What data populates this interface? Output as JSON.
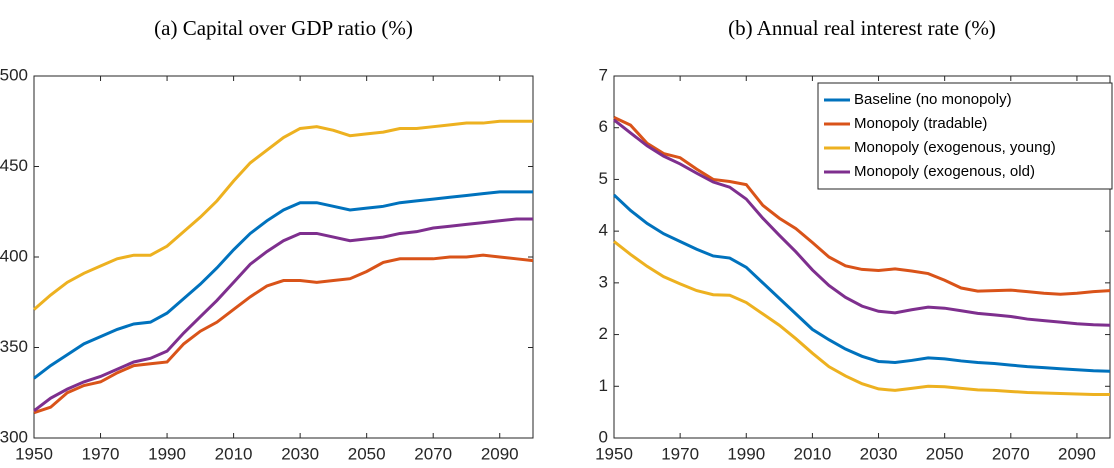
{
  "chart_data": [
    {
      "type": "line",
      "title": "(a) Capital over GDP ratio (%)",
      "x": [
        1950,
        1955,
        1960,
        1965,
        1970,
        1975,
        1980,
        1985,
        1990,
        1995,
        2000,
        2005,
        2010,
        2015,
        2020,
        2025,
        2030,
        2035,
        2040,
        2045,
        2050,
        2055,
        2060,
        2065,
        2070,
        2075,
        2080,
        2085,
        2090,
        2095,
        2100
      ],
      "xlim": [
        1950,
        2100
      ],
      "xticks": [
        1950,
        1970,
        1990,
        2010,
        2030,
        2050,
        2070,
        2090
      ],
      "ylim": [
        300,
        500
      ],
      "yticks": [
        300,
        350,
        400,
        450,
        500
      ],
      "series": [
        {
          "color": "#0072BD",
          "values": [
            333,
            340,
            346,
            352,
            356,
            360,
            363,
            364,
            369,
            377,
            385,
            394,
            404,
            413,
            420,
            426,
            430,
            430,
            428,
            426,
            427,
            428,
            430,
            431,
            432,
            433,
            434,
            435,
            436,
            436,
            436
          ]
        },
        {
          "color": "#D95319",
          "values": [
            314,
            317,
            325,
            329,
            331,
            336,
            340,
            341,
            342,
            352,
            359,
            364,
            371,
            378,
            384,
            387,
            387,
            386,
            387,
            388,
            392,
            397,
            399,
            399,
            399,
            400,
            400,
            401,
            400,
            399,
            398
          ]
        },
        {
          "color": "#EDB120",
          "values": [
            371,
            379,
            386,
            391,
            395,
            399,
            401,
            401,
            406,
            414,
            422,
            431,
            442,
            452,
            459,
            466,
            471,
            472,
            470,
            467,
            468,
            469,
            471,
            471,
            472,
            473,
            474,
            474,
            475,
            475,
            475
          ]
        },
        {
          "color": "#7E2F8E",
          "values": [
            315,
            322,
            327,
            331,
            334,
            338,
            342,
            344,
            348,
            358,
            367,
            376,
            386,
            396,
            403,
            409,
            413,
            413,
            411,
            409,
            410,
            411,
            413,
            414,
            416,
            417,
            418,
            419,
            420,
            421,
            421
          ]
        }
      ]
    },
    {
      "type": "line",
      "title": "(b) Annual real interest rate (%)",
      "x": [
        1950,
        1955,
        1960,
        1965,
        1970,
        1975,
        1980,
        1985,
        1990,
        1995,
        2000,
        2005,
        2010,
        2015,
        2020,
        2025,
        2030,
        2035,
        2040,
        2045,
        2050,
        2055,
        2060,
        2065,
        2070,
        2075,
        2080,
        2085,
        2090,
        2095,
        2100
      ],
      "xlim": [
        1950,
        2100
      ],
      "xticks": [
        1950,
        1970,
        1990,
        2010,
        2030,
        2050,
        2070,
        2090
      ],
      "ylim": [
        0,
        7
      ],
      "yticks": [
        0,
        1,
        2,
        3,
        4,
        5,
        6,
        7
      ],
      "legend": "northeast",
      "series": [
        {
          "name": "Baseline (no monopoly)",
          "color": "#0072BD",
          "values": [
            4.7,
            4.4,
            4.15,
            3.95,
            3.8,
            3.65,
            3.52,
            3.48,
            3.3,
            3.0,
            2.7,
            2.4,
            2.1,
            1.9,
            1.72,
            1.58,
            1.48,
            1.46,
            1.5,
            1.55,
            1.53,
            1.49,
            1.46,
            1.44,
            1.41,
            1.38,
            1.36,
            1.34,
            1.32,
            1.3,
            1.29
          ]
        },
        {
          "name": "Monopoly (tradable)",
          "color": "#D95319",
          "values": [
            6.2,
            6.05,
            5.7,
            5.5,
            5.42,
            5.2,
            5.0,
            4.96,
            4.9,
            4.5,
            4.25,
            4.05,
            3.78,
            3.5,
            3.33,
            3.26,
            3.24,
            3.27,
            3.23,
            3.18,
            3.05,
            2.9,
            2.84,
            2.85,
            2.86,
            2.83,
            2.8,
            2.78,
            2.8,
            2.83,
            2.85
          ]
        },
        {
          "name": "Monopoly (exogenous, young)",
          "color": "#EDB120",
          "values": [
            3.8,
            3.55,
            3.32,
            3.12,
            2.98,
            2.85,
            2.77,
            2.76,
            2.62,
            2.4,
            2.18,
            1.92,
            1.64,
            1.38,
            1.2,
            1.05,
            0.95,
            0.92,
            0.96,
            1.0,
            0.99,
            0.96,
            0.93,
            0.92,
            0.9,
            0.88,
            0.87,
            0.86,
            0.85,
            0.84,
            0.84
          ]
        },
        {
          "name": "Monopoly (exogenous, old)",
          "color": "#7E2F8E",
          "values": [
            6.15,
            5.9,
            5.65,
            5.45,
            5.3,
            5.12,
            4.95,
            4.85,
            4.62,
            4.25,
            3.92,
            3.6,
            3.25,
            2.95,
            2.72,
            2.55,
            2.45,
            2.42,
            2.48,
            2.53,
            2.51,
            2.46,
            2.41,
            2.38,
            2.35,
            2.3,
            2.27,
            2.24,
            2.21,
            2.19,
            2.18
          ]
        }
      ]
    }
  ]
}
